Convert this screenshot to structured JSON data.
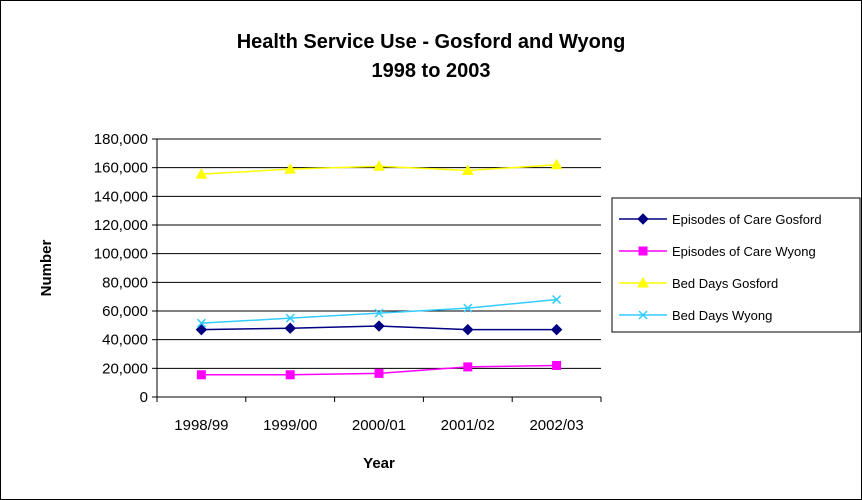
{
  "chart_data": {
    "type": "line",
    "title_lines": [
      "Health Service Use - Gosford and Wyong",
      "1998 to 2003"
    ],
    "xlabel": "Year",
    "ylabel": "Number",
    "categories": [
      "1998/99",
      "1999/00",
      "2000/01",
      "2001/02",
      "2002/03"
    ],
    "ylim": [
      0,
      180000
    ],
    "ytick_values": [
      0,
      20000,
      40000,
      60000,
      80000,
      100000,
      120000,
      140000,
      160000,
      180000
    ],
    "ytick_labels": [
      "0",
      "20,000",
      "40,000",
      "60,000",
      "80,000",
      "100,000",
      "120,000",
      "140,000",
      "160,000",
      "180,000"
    ],
    "grid": "horizontal",
    "legend_position": "right",
    "series": [
      {
        "name": "Episodes of Care Gosford",
        "color": "#000080",
        "marker": "diamond",
        "values": [
          47000,
          48000,
          49500,
          47000,
          47000
        ]
      },
      {
        "name": "Episodes of Care Wyong",
        "color": "#FF00FF",
        "marker": "square",
        "values": [
          15500,
          15500,
          16500,
          21000,
          22000
        ]
      },
      {
        "name": "Bed Days Gosford",
        "color": "#FFFF00",
        "marker": "triangle",
        "values": [
          155500,
          159000,
          161000,
          158000,
          162000
        ]
      },
      {
        "name": "Bed Days Wyong",
        "color": "#33CCFF",
        "marker": "x",
        "values": [
          51500,
          55000,
          58500,
          62000,
          68000
        ]
      }
    ]
  }
}
